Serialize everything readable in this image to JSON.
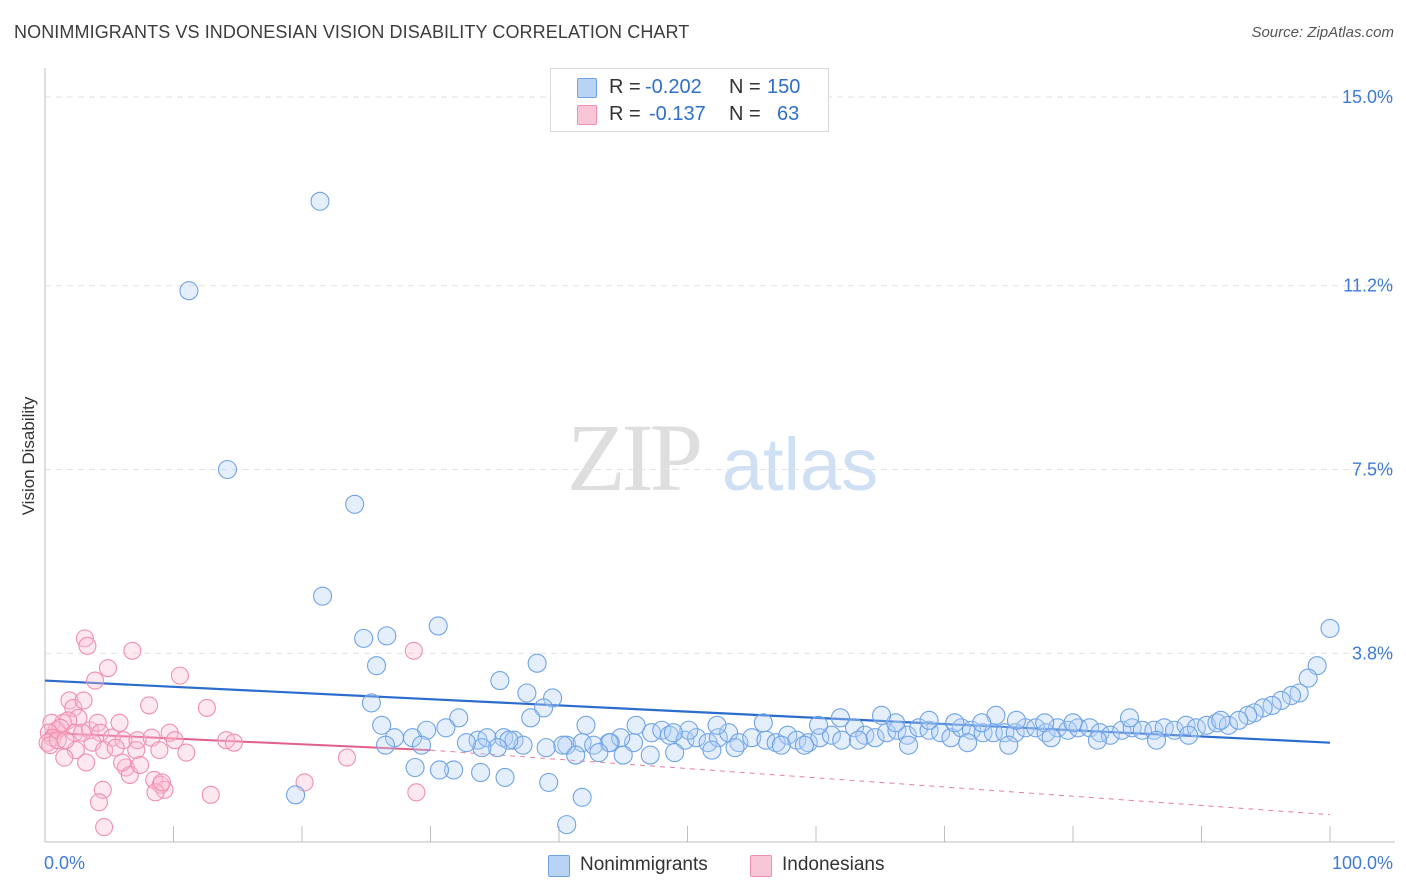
{
  "title": "NONIMMIGRANTS VS INDONESIAN VISION DISABILITY CORRELATION CHART",
  "source": "Source: ZipAtlas.com",
  "watermark": {
    "zip": "ZIP",
    "atlas": "atlas"
  },
  "legend_top": {
    "rows": [
      {
        "r_label": "R =",
        "r_value": "-0.202",
        "n_label": "N =",
        "n_value": "150"
      },
      {
        "r_label": "R =",
        "r_value": "-0.137",
        "n_label": "N =",
        "n_value": "63"
      }
    ]
  },
  "legend_bottom": [
    "Nonimmigrants",
    "Indonesians"
  ],
  "chart_data": {
    "type": "scatter",
    "title": "NONIMMIGRANTS VS INDONESIAN VISION DISABILITY CORRELATION CHART",
    "xlabel": "",
    "ylabel": "Vision Disability",
    "xlim": [
      0,
      100
    ],
    "ylim": [
      0,
      15.5
    ],
    "x_tick_labels": [
      "0.0%",
      "100.0%"
    ],
    "y_ticks": [
      3.8,
      7.5,
      11.2,
      15.0
    ],
    "y_tick_labels": [
      "3.8%",
      "7.5%",
      "11.2%",
      "15.0%"
    ],
    "colors": {
      "Nonimmigrants": "#6fa3e8",
      "Indonesians": "#f08fb0",
      "blue_line": "#2b6ccd",
      "pink_line": "#e0608a",
      "tick_text": "#3f7ad6"
    },
    "series": [
      {
        "name": "Nonimmigrants",
        "r": -0.202,
        "n": 150,
        "trend": {
          "x": [
            0,
            100
          ],
          "y": [
            3.25,
            2.0
          ]
        },
        "points": [
          [
            21.4,
            12.9
          ],
          [
            11.2,
            11.1
          ],
          [
            14.2,
            7.5
          ],
          [
            24.1,
            6.8
          ],
          [
            21.6,
            4.95
          ],
          [
            30.6,
            4.35
          ],
          [
            26.6,
            4.15
          ],
          [
            24.8,
            4.1
          ],
          [
            100.0,
            4.3
          ],
          [
            25.8,
            3.55
          ],
          [
            38.3,
            3.6
          ],
          [
            99.0,
            3.55
          ],
          [
            98.3,
            3.3
          ],
          [
            37.5,
            3.0
          ],
          [
            35.4,
            3.25
          ],
          [
            39.5,
            2.9
          ],
          [
            25.4,
            2.8
          ],
          [
            97.6,
            3.0
          ],
          [
            97.0,
            2.95
          ],
          [
            96.2,
            2.85
          ],
          [
            95.5,
            2.75
          ],
          [
            94.8,
            2.7
          ],
          [
            94.1,
            2.6
          ],
          [
            93.6,
            2.55
          ],
          [
            38.8,
            2.7
          ],
          [
            32.2,
            2.5
          ],
          [
            37.8,
            2.5
          ],
          [
            42.1,
            2.35
          ],
          [
            26.2,
            2.35
          ],
          [
            31.2,
            2.3
          ],
          [
            29.7,
            2.25
          ],
          [
            28.6,
            2.1
          ],
          [
            27.2,
            2.1
          ],
          [
            33.7,
            2.05
          ],
          [
            35.7,
            2.1
          ],
          [
            34.4,
            2.1
          ],
          [
            36.5,
            2.05
          ],
          [
            26.5,
            1.95
          ],
          [
            40.6,
            1.95
          ],
          [
            41.8,
            2.0
          ],
          [
            44.0,
            2.0
          ],
          [
            45.8,
            2.0
          ],
          [
            47.2,
            2.2
          ],
          [
            48.0,
            2.25
          ],
          [
            48.6,
            2.15
          ],
          [
            49.8,
            2.05
          ],
          [
            50.7,
            2.1
          ],
          [
            51.6,
            2.0
          ],
          [
            52.4,
            2.1
          ],
          [
            53.2,
            2.2
          ],
          [
            54.0,
            2.0
          ],
          [
            55.0,
            2.1
          ],
          [
            56.1,
            2.05
          ],
          [
            56.9,
            2.0
          ],
          [
            57.8,
            2.15
          ],
          [
            58.5,
            2.05
          ],
          [
            59.4,
            2.0
          ],
          [
            60.3,
            2.1
          ],
          [
            61.2,
            2.15
          ],
          [
            62.0,
            2.05
          ],
          [
            63.0,
            2.3
          ],
          [
            63.8,
            2.15
          ],
          [
            64.6,
            2.1
          ],
          [
            65.5,
            2.2
          ],
          [
            66.3,
            2.25
          ],
          [
            67.1,
            2.15
          ],
          [
            68.0,
            2.3
          ],
          [
            68.8,
            2.25
          ],
          [
            69.7,
            2.2
          ],
          [
            70.5,
            2.1
          ],
          [
            71.3,
            2.3
          ],
          [
            72.1,
            2.25
          ],
          [
            73.0,
            2.2
          ],
          [
            73.8,
            2.2
          ],
          [
            74.7,
            2.2
          ],
          [
            75.5,
            2.2
          ],
          [
            76.3,
            2.3
          ],
          [
            77.1,
            2.3
          ],
          [
            77.9,
            2.2
          ],
          [
            78.8,
            2.3
          ],
          [
            79.6,
            2.25
          ],
          [
            80.4,
            2.3
          ],
          [
            81.3,
            2.3
          ],
          [
            82.1,
            2.2
          ],
          [
            82.9,
            2.15
          ],
          [
            83.8,
            2.25
          ],
          [
            84.6,
            2.3
          ],
          [
            85.4,
            2.25
          ],
          [
            86.3,
            2.25
          ],
          [
            87.1,
            2.3
          ],
          [
            87.9,
            2.25
          ],
          [
            88.8,
            2.35
          ],
          [
            89.6,
            2.3
          ],
          [
            90.4,
            2.35
          ],
          [
            91.2,
            2.4
          ],
          [
            92.1,
            2.35
          ],
          [
            92.9,
            2.45
          ],
          [
            74.0,
            2.55
          ],
          [
            75.6,
            2.45
          ],
          [
            77.8,
            2.4
          ],
          [
            80.0,
            2.4
          ],
          [
            84.4,
            2.5
          ],
          [
            91.5,
            2.45
          ],
          [
            61.9,
            2.5
          ],
          [
            66.2,
            2.4
          ],
          [
            68.8,
            2.45
          ],
          [
            70.8,
            2.4
          ],
          [
            72.9,
            2.4
          ],
          [
            65.1,
            2.55
          ],
          [
            60.2,
            2.35
          ],
          [
            55.9,
            2.4
          ],
          [
            52.3,
            2.35
          ],
          [
            50.1,
            2.25
          ],
          [
            48.9,
            2.2
          ],
          [
            46.0,
            2.35
          ],
          [
            44.8,
            2.1
          ],
          [
            43.9,
            2.0
          ],
          [
            42.7,
            1.95
          ],
          [
            41.3,
            1.75
          ],
          [
            40.3,
            1.95
          ],
          [
            39.0,
            1.9
          ],
          [
            37.2,
            1.95
          ],
          [
            36.1,
            2.05
          ],
          [
            35.2,
            1.9
          ],
          [
            34.0,
            1.9
          ],
          [
            32.8,
            2.0
          ],
          [
            29.3,
            1.95
          ],
          [
            43.1,
            1.8
          ],
          [
            45.0,
            1.75
          ],
          [
            47.1,
            1.75
          ],
          [
            49.0,
            1.8
          ],
          [
            51.9,
            1.85
          ],
          [
            53.7,
            1.9
          ],
          [
            57.3,
            1.95
          ],
          [
            59.1,
            1.95
          ],
          [
            63.3,
            2.05
          ],
          [
            67.2,
            1.95
          ],
          [
            71.8,
            2.0
          ],
          [
            75.0,
            1.95
          ],
          [
            78.3,
            2.1
          ],
          [
            81.9,
            2.05
          ],
          [
            86.5,
            2.05
          ],
          [
            89.0,
            2.15
          ],
          [
            33.9,
            1.4
          ],
          [
            31.8,
            1.45
          ],
          [
            28.8,
            1.5
          ],
          [
            30.7,
            1.45
          ],
          [
            35.8,
            1.3
          ],
          [
            39.2,
            1.2
          ],
          [
            41.8,
            0.9
          ],
          [
            19.5,
            0.95
          ],
          [
            40.6,
            0.35
          ]
        ]
      },
      {
        "name": "Indonesians",
        "r": -0.137,
        "n": 63,
        "trend": {
          "x": [
            0,
            30
          ],
          "y": [
            2.2,
            1.85
          ]
        },
        "trend_extension": {
          "x": [
            30,
            100
          ],
          "y": [
            1.85,
            0.55
          ]
        },
        "points": [
          [
            3.1,
            4.1
          ],
          [
            3.3,
            3.95
          ],
          [
            6.8,
            3.85
          ],
          [
            28.7,
            3.85
          ],
          [
            4.9,
            3.5
          ],
          [
            3.9,
            3.25
          ],
          [
            10.5,
            3.35
          ],
          [
            1.9,
            2.85
          ],
          [
            2.2,
            2.7
          ],
          [
            3.0,
            2.85
          ],
          [
            8.1,
            2.75
          ],
          [
            12.6,
            2.7
          ],
          [
            2.6,
            2.5
          ],
          [
            1.4,
            2.4
          ],
          [
            1.8,
            2.45
          ],
          [
            0.5,
            2.4
          ],
          [
            0.9,
            2.25
          ],
          [
            1.2,
            2.3
          ],
          [
            0.3,
            2.2
          ],
          [
            0.6,
            2.1
          ],
          [
            0.2,
            2.0
          ],
          [
            0.4,
            1.95
          ],
          [
            1.0,
            2.05
          ],
          [
            2.3,
            2.2
          ],
          [
            3.5,
            2.25
          ],
          [
            4.1,
            2.4
          ],
          [
            5.8,
            2.4
          ],
          [
            4.3,
            2.2
          ],
          [
            3.7,
            2.0
          ],
          [
            5.2,
            2.1
          ],
          [
            6.1,
            2.05
          ],
          [
            7.2,
            2.05
          ],
          [
            8.3,
            2.1
          ],
          [
            9.7,
            2.2
          ],
          [
            10.1,
            2.05
          ],
          [
            14.1,
            2.05
          ],
          [
            14.7,
            2.0
          ],
          [
            2.4,
            1.85
          ],
          [
            4.6,
            1.85
          ],
          [
            5.5,
            1.9
          ],
          [
            7.1,
            1.85
          ],
          [
            8.9,
            1.85
          ],
          [
            11.0,
            1.8
          ],
          [
            23.5,
            1.7
          ],
          [
            1.5,
            1.7
          ],
          [
            3.2,
            1.6
          ],
          [
            6.3,
            1.5
          ],
          [
            6.6,
            1.35
          ],
          [
            8.5,
            1.25
          ],
          [
            9.0,
            1.15
          ],
          [
            9.3,
            1.05
          ],
          [
            20.2,
            1.2
          ],
          [
            28.9,
            1.0
          ],
          [
            4.5,
            1.05
          ],
          [
            8.6,
            1.0
          ],
          [
            9.1,
            1.2
          ],
          [
            7.4,
            1.55
          ],
          [
            12.9,
            0.95
          ],
          [
            4.2,
            0.8
          ],
          [
            4.6,
            0.3
          ],
          [
            2.9,
            2.2
          ],
          [
            1.6,
            2.05
          ],
          [
            6.0,
            1.6
          ]
        ]
      }
    ]
  }
}
